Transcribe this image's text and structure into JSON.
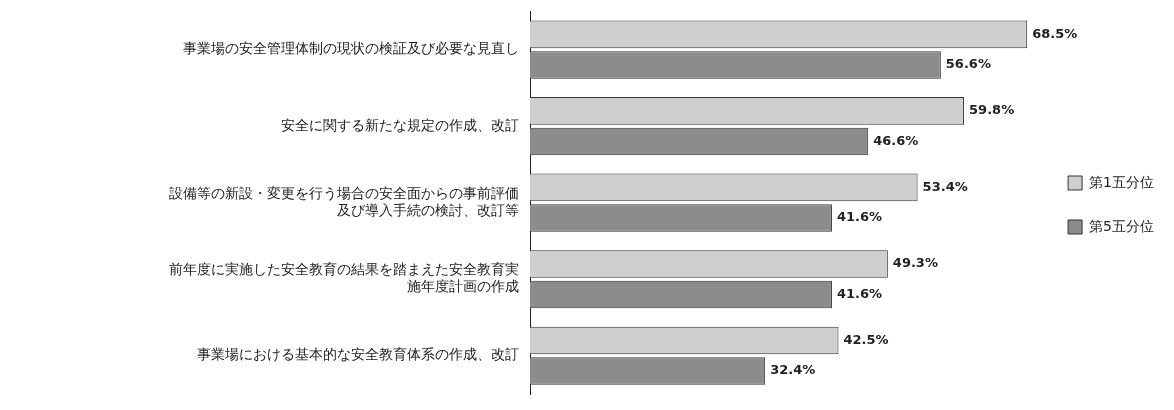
{
  "chart_data": {
    "type": "bar",
    "orientation": "horizontal",
    "categories": [
      "事業場の安全管理体制の現状の検証及び必要な見直し",
      "安全に関する新たな規定の作成、改訂",
      "設備等の新設・変更を行う場合の安全面からの事前評価及び導入手続の検討、改訂等",
      "前年度に実施した安全教育の結果を踏まえた安全教育実施年度計画の作成",
      "事業場における基本的な安全教育体系の作成、改訂"
    ],
    "series": [
      {
        "name": "第1五分位",
        "color": "#cfcfcf",
        "values": [
          68.5,
          59.8,
          53.4,
          49.3,
          42.5
        ],
        "value_labels": [
          "68.5%",
          "59.8%",
          "53.4%",
          "49.3%",
          "42.5%"
        ]
      },
      {
        "name": "第5五分位",
        "color": "#8c8c8c",
        "values": [
          56.6,
          46.6,
          41.6,
          41.6,
          32.4
        ],
        "value_labels": [
          "56.6%",
          "46.6%",
          "41.6%",
          "41.6%",
          "32.4%"
        ]
      }
    ],
    "relative": false,
    "legend": "right",
    "grid": false
  }
}
